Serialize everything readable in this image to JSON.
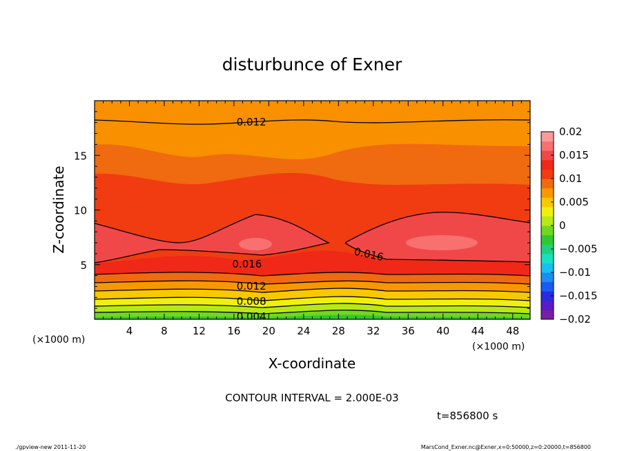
{
  "chart_data": {
    "type": "contour",
    "title": "disturbunce of Exner",
    "xlabel": "X-coordinate",
    "ylabel": "Z-coordinate",
    "x_unit": "(×1000 m)",
    "y_unit": "(×1000 m)",
    "xlim": [
      0,
      50
    ],
    "ylim": [
      0,
      20
    ],
    "x_ticks": [
      "4",
      "8",
      "12",
      "16",
      "20",
      "24",
      "28",
      "32",
      "36",
      "40",
      "44",
      "48"
    ],
    "y_ticks": [
      "5",
      "10",
      "15"
    ],
    "contour_interval_text": "CONTOUR INTERVAL = 2.000E-03",
    "contour_labels": [
      {
        "value": "0.012",
        "x": 18.0,
        "z": 18.1
      },
      {
        "value": "0.016",
        "x": 17.5,
        "z": 5.1
      },
      {
        "value": "0.016",
        "x": 31.5,
        "z": 6.0
      },
      {
        "value": "0.012",
        "x": 18.0,
        "z": 3.1
      },
      {
        "value": "0.008",
        "x": 18.0,
        "z": 1.7
      },
      {
        "value": "0.004",
        "x": 18.0,
        "z": 0.3
      }
    ],
    "colorbar": {
      "min": -0.02,
      "max": 0.02,
      "tick_labels": [
        "0.02",
        "0.015",
        "0.01",
        "0.005",
        "0",
        "−0.005",
        "−0.01",
        "−0.015",
        "−0.02"
      ],
      "colors": [
        "#7a1fa0",
        "#5a1ac8",
        "#2a2ae0",
        "#1a5cf0",
        "#1e8cf0",
        "#16c0f0",
        "#18e0c0",
        "#20d080",
        "#30c830",
        "#70d820",
        "#b8e818",
        "#f0f010",
        "#f8c800",
        "#f89800",
        "#f06a10",
        "#f03c10",
        "#f02818",
        "#f04848",
        "#f87070",
        "#fa9a9a"
      ]
    },
    "time_label": "t=856800 s"
  },
  "footer": {
    "left": "./gpview-new   2011-11-20",
    "right": "MarsCond_Exner.nc@Exner,x=0:50000,z=0:20000,t=856800"
  }
}
